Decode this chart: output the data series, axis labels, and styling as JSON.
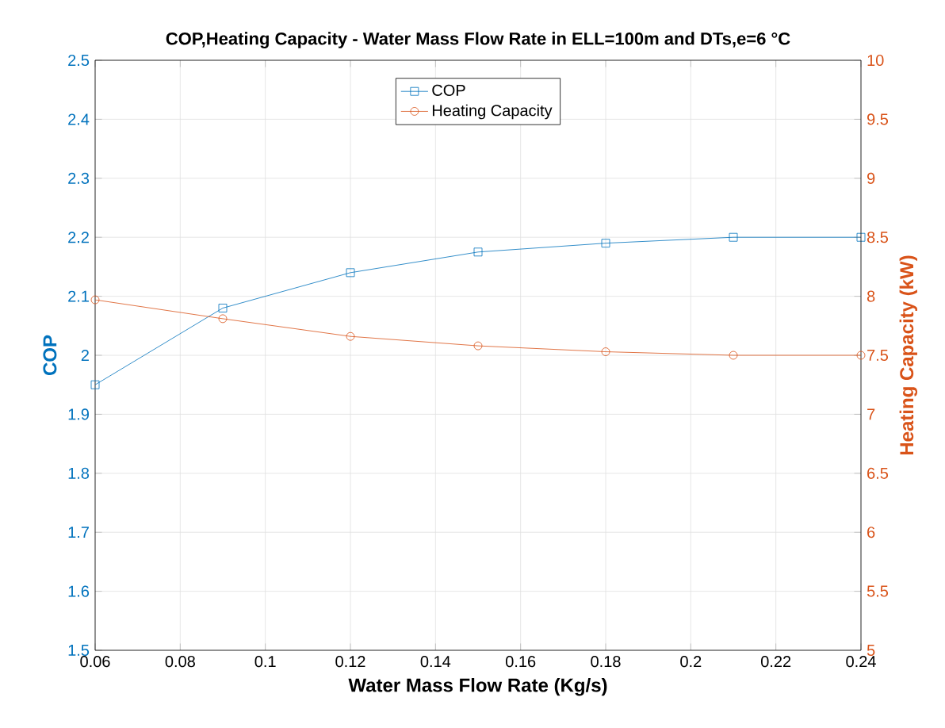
{
  "chart_data": {
    "type": "line",
    "title": "COP,Heating Capacity - Water Mass Flow Rate in ELL=100m and DTs,e=6 °C",
    "xlabel": "Water Mass Flow Rate (Kg/s)",
    "ylabel": "COP",
    "y2label": "Heating Capacity (kW)",
    "x": [
      0.06,
      0.09,
      0.12,
      0.15,
      0.18,
      0.21,
      0.24
    ],
    "series": [
      {
        "name": "COP",
        "color": "#0072bd",
        "marker": "square",
        "values": [
          1.95,
          2.08,
          2.14,
          2.175,
          2.19,
          2.2,
          2.2
        ]
      },
      {
        "name": "Heating Capacity",
        "color": "#d95319",
        "marker": "circle",
        "axis": "y2",
        "values": [
          7.97,
          7.81,
          7.66,
          7.58,
          7.53,
          7.5,
          7.5
        ]
      }
    ],
    "xlim": [
      0.06,
      0.24
    ],
    "xticks": [
      0.06,
      0.08,
      0.1,
      0.12,
      0.14,
      0.16,
      0.18,
      0.2,
      0.22,
      0.24
    ],
    "ylim": [
      1.5,
      2.5
    ],
    "yticks": [
      1.5,
      1.6,
      1.7,
      1.8,
      1.9,
      2,
      2.1,
      2.2,
      2.3,
      2.4,
      2.5
    ],
    "y2lim": [
      5,
      10
    ],
    "y2ticks": [
      5,
      5.5,
      6,
      6.5,
      7,
      7.5,
      8,
      8.5,
      9,
      9.5,
      10
    ],
    "grid": true,
    "legend": "top",
    "line_style": "solid"
  }
}
